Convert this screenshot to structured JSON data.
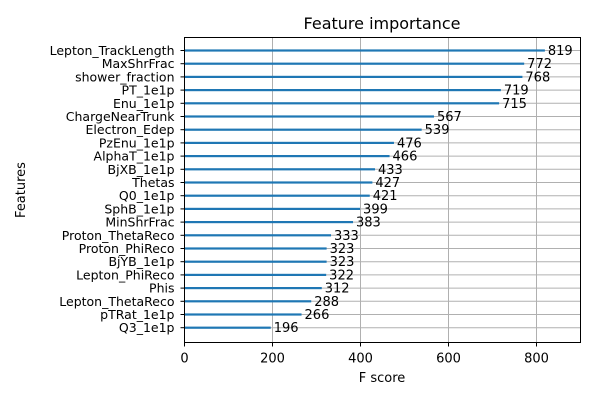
{
  "chart_data": {
    "type": "bar",
    "orientation": "horizontal",
    "title": "Feature importance",
    "xlabel": "F score",
    "ylabel": "Features",
    "xlim": [
      0,
      900
    ],
    "xticks": [
      0,
      200,
      400,
      600,
      800
    ],
    "grid": true,
    "categories": [
      "Lepton_TrackLength",
      "MaxShrFrac",
      "shower_fraction",
      "PT_1e1p",
      "Enu_1e1p",
      "ChargeNearTrunk",
      "Electron_Edep",
      "PzEnu_1e1p",
      "AlphaT_1e1p",
      "BjXB_1e1p",
      "Thetas",
      "Q0_1e1p",
      "SphB_1e1p",
      "MinShrFrac",
      "Proton_ThetaReco",
      "Proton_PhiReco",
      "BjYB_1e1p",
      "Lepton_PhiReco",
      "Phis",
      "Lepton_ThetaReco",
      "pTRat_1e1p",
      "Q3_1e1p"
    ],
    "values": [
      819,
      772,
      768,
      719,
      715,
      567,
      539,
      476,
      466,
      433,
      427,
      421,
      399,
      383,
      333,
      323,
      323,
      322,
      312,
      288,
      266,
      196
    ],
    "colors": {
      "bar": "#1f77b4",
      "grid": "#b0b0b0",
      "axis": "#000000"
    }
  }
}
